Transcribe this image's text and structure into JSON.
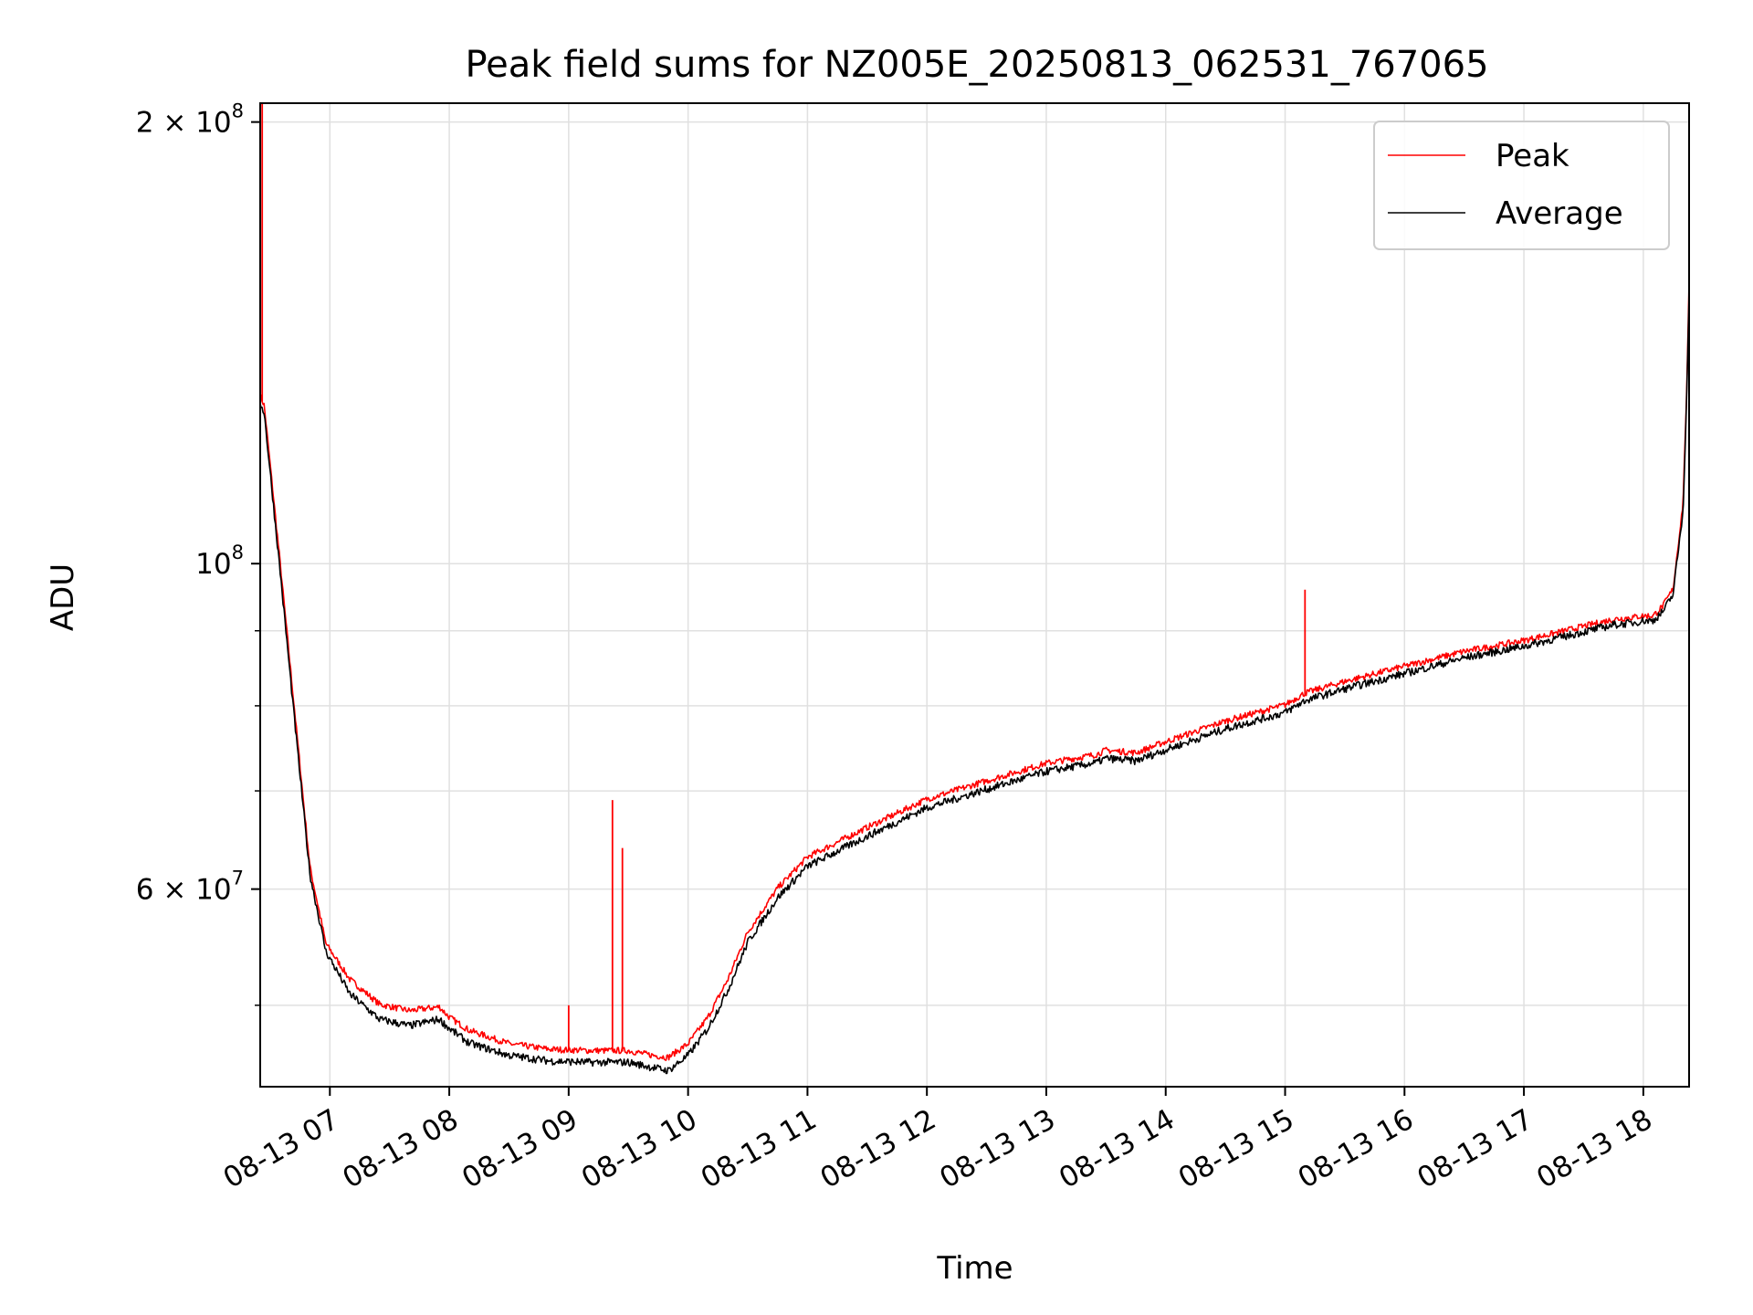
{
  "chart_data": {
    "type": "line",
    "title": "Peak field sums for NZ005E_20250813_062531_767065",
    "xlabel": "Time",
    "ylabel": "ADU",
    "yscale": "log",
    "ylim": [
      44000000,
      206000000
    ],
    "xlim": [
      "2025-08-13 06:25",
      "2025-08-13 18:23"
    ],
    "grid": true,
    "legend_position": "top-right",
    "x_ticks": [
      "08-13 07",
      "08-13 08",
      "08-13 09",
      "08-13 10",
      "08-13 11",
      "08-13 12",
      "08-13 13",
      "08-13 14",
      "08-13 15",
      "08-13 16",
      "08-13 17",
      "08-13 18"
    ],
    "y_ticks": [
      {
        "value": 200000000,
        "mantissa": "2",
        "times": "×",
        "base": "10",
        "exp": "8"
      },
      {
        "value": 100000000,
        "mantissa": "",
        "times": "",
        "base": "10",
        "exp": "8"
      },
      {
        "value": 60000000,
        "mantissa": "6",
        "times": "×",
        "base": "10",
        "exp": "7"
      }
    ],
    "y_minor_ticks": [
      50000000,
      70000000,
      80000000,
      90000000
    ],
    "x": [
      "2025-08-13 06:25",
      "2025-08-13 06:27",
      "2025-08-13 06:35",
      "2025-08-13 06:42",
      "2025-08-13 06:50",
      "2025-08-13 06:58",
      "2025-08-13 07:10",
      "2025-08-13 07:25",
      "2025-08-13 07:40",
      "2025-08-13 07:55",
      "2025-08-13 08:00",
      "2025-08-13 08:10",
      "2025-08-13 08:30",
      "2025-08-13 08:50",
      "2025-08-13 09:10",
      "2025-08-13 09:30",
      "2025-08-13 09:40",
      "2025-08-13 09:50",
      "2025-08-13 10:00",
      "2025-08-13 10:10",
      "2025-08-13 10:20",
      "2025-08-13 10:30",
      "2025-08-13 10:45",
      "2025-08-13 11:00",
      "2025-08-13 11:30",
      "2025-08-13 12:00",
      "2025-08-13 12:30",
      "2025-08-13 13:00",
      "2025-08-13 13:25",
      "2025-08-13 13:30",
      "2025-08-13 13:45",
      "2025-08-13 14:00",
      "2025-08-13 14:30",
      "2025-08-13 15:00",
      "2025-08-13 15:10",
      "2025-08-13 15:30",
      "2025-08-13 16:00",
      "2025-08-13 16:30",
      "2025-08-13 17:00",
      "2025-08-13 17:30",
      "2025-08-13 17:45",
      "2025-08-13 17:55",
      "2025-08-13 18:00",
      "2025-08-13 18:05",
      "2025-08-13 18:10",
      "2025-08-13 18:15",
      "2025-08-13 18:20",
      "2025-08-13 18:22",
      "2025-08-13 18:23"
    ],
    "series": [
      {
        "name": "Peak",
        "color": "#ff0000",
        "values": [
          130000000,
          128000000,
          100000000,
          80000000,
          62000000,
          55000000,
          52000000,
          50000000,
          49500000,
          49800000,
          49000000,
          48000000,
          47000000,
          46600000,
          46500000,
          46500000,
          46200000,
          46000000,
          47000000,
          49000000,
          52000000,
          56000000,
          60000000,
          63000000,
          66000000,
          69000000,
          71000000,
          73000000,
          74000000,
          74500000,
          74200000,
          75500000,
          78000000,
          80000000,
          81500000,
          83000000,
          85000000,
          87000000,
          88500000,
          90500000,
          91500000,
          91800000,
          92000000,
          92000000,
          93500000,
          96000000,
          110000000,
          134000000,
          155000000
        ],
        "spikes": [
          {
            "x": "2025-08-13 06:26",
            "value": 210000000
          },
          {
            "x": "2025-08-13 09:00",
            "value": 50000000
          },
          {
            "x": "2025-08-13 09:22",
            "value": 69000000
          },
          {
            "x": "2025-08-13 09:27",
            "value": 64000000
          },
          {
            "x": "2025-08-13 15:10",
            "value": 96000000
          }
        ]
      },
      {
        "name": "Average",
        "color": "#000000",
        "values": [
          129000000,
          127000000,
          99000000,
          79000000,
          61500000,
          54500000,
          51000000,
          49000000,
          48500000,
          49000000,
          48300000,
          47200000,
          46300000,
          45900000,
          45800000,
          45800000,
          45500000,
          45200000,
          46300000,
          48300000,
          51300000,
          55300000,
          59300000,
          62300000,
          65300000,
          68300000,
          70300000,
          72300000,
          73300000,
          73800000,
          73500000,
          74800000,
          77300000,
          79300000,
          80800000,
          82300000,
          84300000,
          86400000,
          88000000,
          90000000,
          91000000,
          91300000,
          91600000,
          91600000,
          93000000,
          95500000,
          109000000,
          133000000,
          154000000
        ]
      }
    ]
  }
}
